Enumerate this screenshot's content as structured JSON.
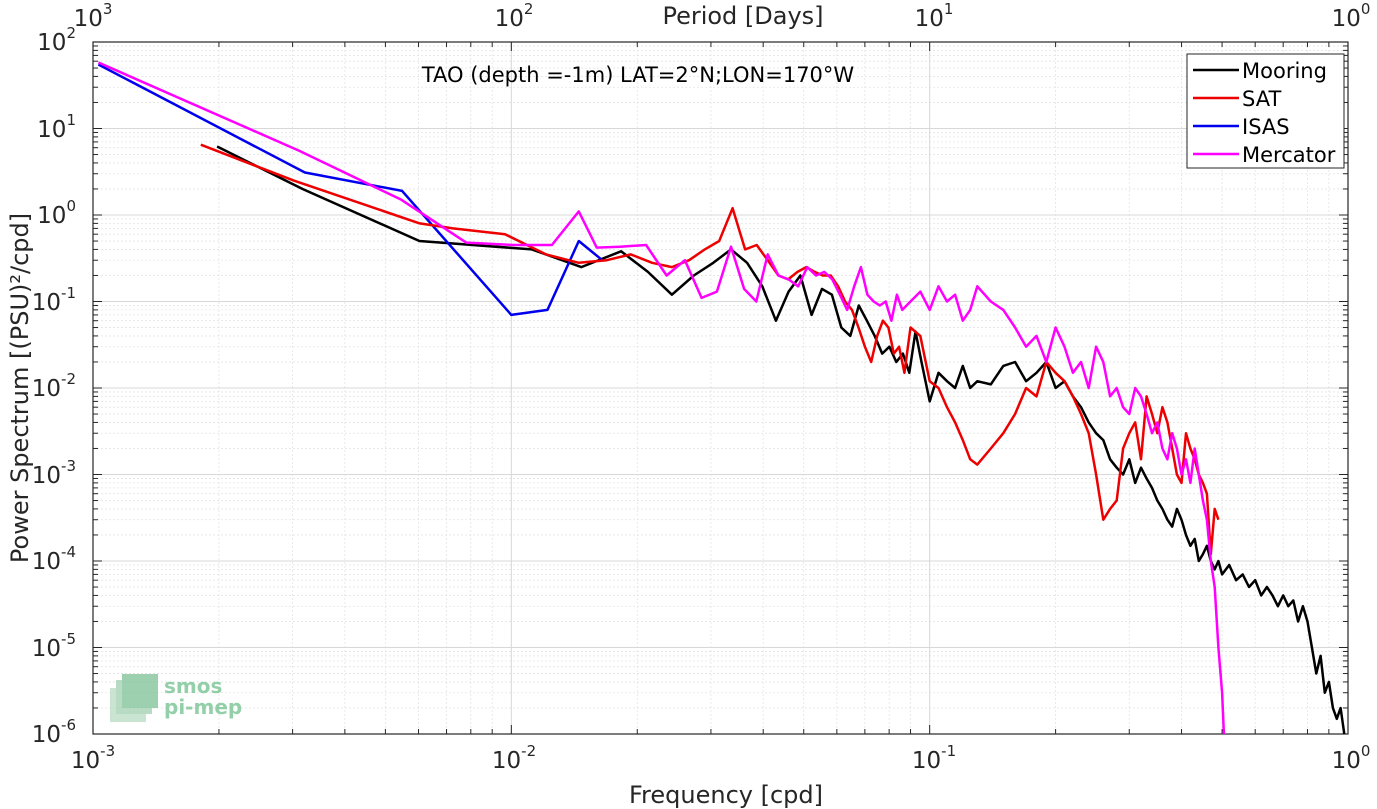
{
  "chart_data": {
    "type": "line",
    "title": "TAO (depth =-1m) LAT=2°N;LON=170°W",
    "xlabel": "Frequency [cpd]",
    "ylabel": "Power Spectrum [(PSU)²/cpd]",
    "top_axis_label": "Period [Days]",
    "x_scale": "log",
    "y_scale": "log",
    "xlim": [
      0.001,
      1
    ],
    "ylim": [
      1e-06,
      100
    ],
    "grid": true,
    "legend_position": "top-right",
    "x_tick_labels": [
      {
        "base": "10",
        "exp": "-3"
      },
      {
        "base": "10",
        "exp": "-2"
      },
      {
        "base": "10",
        "exp": "-1"
      },
      {
        "base": "10",
        "exp": "0"
      }
    ],
    "y_tick_labels": [
      {
        "base": "10",
        "exp": "-6"
      },
      {
        "base": "10",
        "exp": "-5"
      },
      {
        "base": "10",
        "exp": "-4"
      },
      {
        "base": "10",
        "exp": "-3"
      },
      {
        "base": "10",
        "exp": "-2"
      },
      {
        "base": "10",
        "exp": "-1"
      },
      {
        "base": "10",
        "exp": "0"
      },
      {
        "base": "10",
        "exp": "1"
      },
      {
        "base": "10",
        "exp": "2"
      }
    ],
    "top_tick_labels": [
      {
        "base": "10",
        "exp": "3"
      },
      {
        "base": "10",
        "exp": "2"
      },
      {
        "base": "10",
        "exp": "1"
      },
      {
        "base": "10",
        "exp": "0"
      }
    ],
    "series": [
      {
        "name": "Mooring",
        "color": "#000000",
        "x": [
          0.00198,
          0.00317,
          0.00603,
          0.0112,
          0.0147,
          0.0183,
          0.0212,
          0.0242,
          0.0273,
          0.0304,
          0.0335,
          0.0366,
          0.0398,
          0.0429,
          0.046,
          0.0491,
          0.0522,
          0.0553,
          0.0584,
          0.0615,
          0.0646,
          0.0677,
          0.0708,
          0.0739,
          0.077,
          0.0801,
          0.0832,
          0.0863,
          0.0894,
          0.0925,
          0.0956,
          0.1,
          0.105,
          0.11,
          0.115,
          0.12,
          0.125,
          0.13,
          0.14,
          0.15,
          0.16,
          0.17,
          0.18,
          0.19,
          0.2,
          0.21,
          0.22,
          0.23,
          0.24,
          0.25,
          0.26,
          0.27,
          0.28,
          0.29,
          0.3,
          0.31,
          0.32,
          0.33,
          0.34,
          0.35,
          0.36,
          0.37,
          0.38,
          0.39,
          0.4,
          0.41,
          0.42,
          0.43,
          0.44,
          0.45,
          0.46,
          0.47,
          0.48,
          0.49,
          0.5,
          0.52,
          0.54,
          0.56,
          0.58,
          0.6,
          0.62,
          0.64,
          0.66,
          0.68,
          0.7,
          0.72,
          0.74,
          0.76,
          0.78,
          0.8,
          0.82,
          0.84,
          0.86,
          0.88,
          0.9,
          0.92,
          0.94,
          0.96,
          0.98
        ],
        "y": [
          6.2,
          2.0,
          0.5,
          0.4,
          0.25,
          0.38,
          0.22,
          0.12,
          0.2,
          0.28,
          0.4,
          0.28,
          0.15,
          0.06,
          0.13,
          0.2,
          0.07,
          0.14,
          0.12,
          0.05,
          0.04,
          0.09,
          0.06,
          0.04,
          0.025,
          0.03,
          0.02,
          0.025,
          0.015,
          0.045,
          0.02,
          0.007,
          0.015,
          0.012,
          0.01,
          0.018,
          0.01,
          0.012,
          0.011,
          0.018,
          0.02,
          0.012,
          0.015,
          0.02,
          0.01,
          0.012,
          0.008,
          0.006,
          0.004,
          0.003,
          0.0025,
          0.0015,
          0.0012,
          0.001,
          0.0015,
          0.0008,
          0.0012,
          0.0009,
          0.0007,
          0.0005,
          0.0004,
          0.0003,
          0.00025,
          0.0004,
          0.0003,
          0.0002,
          0.00015,
          0.00018,
          0.0001,
          0.00012,
          0.00015,
          0.0001,
          8e-05,
          0.0001,
          7e-05,
          9e-05,
          6e-05,
          7e-05,
          5e-05,
          6e-05,
          4e-05,
          5e-05,
          4e-05,
          3e-05,
          4e-05,
          3e-05,
          3.5e-05,
          2e-05,
          3e-05,
          2e-05,
          1e-05,
          5e-06,
          8e-06,
          3e-06,
          4e-06,
          2e-06,
          1.5e-06,
          2e-06,
          1e-06
        ]
      },
      {
        "name": "SAT",
        "color": "#ee0000",
        "x": [
          0.00181,
          0.00302,
          0.00604,
          0.00725,
          0.00966,
          0.0121,
          0.0145,
          0.0169,
          0.0193,
          0.0217,
          0.0242,
          0.0266,
          0.029,
          0.0314,
          0.0338,
          0.0362,
          0.0386,
          0.041,
          0.0435,
          0.0459,
          0.0483,
          0.0507,
          0.0531,
          0.0555,
          0.058,
          0.0604,
          0.0628,
          0.0652,
          0.0676,
          0.07,
          0.0725,
          0.0749,
          0.0773,
          0.0797,
          0.0821,
          0.0845,
          0.087,
          0.09,
          0.095,
          0.1,
          0.105,
          0.11,
          0.115,
          0.12,
          0.125,
          0.13,
          0.14,
          0.15,
          0.16,
          0.17,
          0.18,
          0.19,
          0.2,
          0.21,
          0.22,
          0.23,
          0.24,
          0.25,
          0.26,
          0.27,
          0.28,
          0.29,
          0.3,
          0.31,
          0.32,
          0.33,
          0.34,
          0.35,
          0.36,
          0.37,
          0.38,
          0.39,
          0.4,
          0.41,
          0.42,
          0.43,
          0.44,
          0.45,
          0.46,
          0.47,
          0.48,
          0.49
        ],
        "y": [
          6.5,
          2.5,
          0.8,
          0.7,
          0.6,
          0.35,
          0.28,
          0.3,
          0.35,
          0.28,
          0.25,
          0.3,
          0.4,
          0.5,
          1.2,
          0.4,
          0.45,
          0.3,
          0.2,
          0.18,
          0.22,
          0.25,
          0.22,
          0.2,
          0.2,
          0.15,
          0.1,
          0.08,
          0.05,
          0.03,
          0.02,
          0.04,
          0.06,
          0.05,
          0.025,
          0.03,
          0.015,
          0.05,
          0.04,
          0.012,
          0.01,
          0.006,
          0.004,
          0.0025,
          0.0015,
          0.0013,
          0.002,
          0.003,
          0.005,
          0.01,
          0.008,
          0.02,
          0.015,
          0.012,
          0.008,
          0.005,
          0.003,
          0.001,
          0.0003,
          0.0004,
          0.0005,
          0.002,
          0.003,
          0.004,
          0.0015,
          0.008,
          0.005,
          0.003,
          0.006,
          0.004,
          0.002,
          0.001,
          0.0008,
          0.003,
          0.002,
          0.0015,
          0.001,
          0.0008,
          0.0006,
          0.00012,
          0.0004,
          0.0003
        ]
      },
      {
        "name": "ISAS",
        "color": "#0000ee",
        "x": [
          0.00103,
          0.00321,
          0.00548,
          0.01,
          0.0122,
          0.0145,
          0.0165
        ],
        "y": [
          55,
          3.1,
          1.9,
          0.07,
          0.08,
          0.5,
          0.3
        ]
      },
      {
        "name": "Mercator",
        "color": "#ff00ff",
        "x": [
          0.00103,
          0.00312,
          0.00546,
          0.0078,
          0.0101,
          0.0125,
          0.0145,
          0.016,
          0.0182,
          0.021,
          0.0235,
          0.026,
          0.0285,
          0.031,
          0.0335,
          0.036,
          0.0385,
          0.041,
          0.0435,
          0.046,
          0.0485,
          0.051,
          0.0535,
          0.056,
          0.0585,
          0.061,
          0.0635,
          0.066,
          0.0685,
          0.071,
          0.0735,
          0.076,
          0.0785,
          0.081,
          0.0835,
          0.086,
          0.09,
          0.095,
          0.1,
          0.105,
          0.11,
          0.115,
          0.12,
          0.125,
          0.13,
          0.14,
          0.15,
          0.16,
          0.17,
          0.18,
          0.19,
          0.2,
          0.21,
          0.22,
          0.23,
          0.24,
          0.25,
          0.26,
          0.27,
          0.28,
          0.29,
          0.3,
          0.31,
          0.32,
          0.33,
          0.34,
          0.35,
          0.36,
          0.37,
          0.38,
          0.39,
          0.4,
          0.41,
          0.42,
          0.43,
          0.44,
          0.45,
          0.46,
          0.47,
          0.48,
          0.49,
          0.5,
          0.505
        ],
        "y": [
          58,
          5.5,
          1.5,
          0.48,
          0.45,
          0.45,
          1.1,
          0.42,
          0.43,
          0.45,
          0.2,
          0.3,
          0.11,
          0.13,
          0.43,
          0.14,
          0.1,
          0.35,
          0.2,
          0.18,
          0.15,
          0.25,
          0.2,
          0.22,
          0.18,
          0.12,
          0.08,
          0.15,
          0.25,
          0.12,
          0.1,
          0.09,
          0.1,
          0.06,
          0.12,
          0.08,
          0.1,
          0.13,
          0.08,
          0.15,
          0.1,
          0.12,
          0.06,
          0.08,
          0.15,
          0.1,
          0.08,
          0.05,
          0.03,
          0.04,
          0.02,
          0.05,
          0.03,
          0.015,
          0.02,
          0.01,
          0.03,
          0.02,
          0.008,
          0.01,
          0.006,
          0.005,
          0.01,
          0.008,
          0.005,
          0.003,
          0.004,
          0.002,
          0.0015,
          0.003,
          0.002,
          0.001,
          0.0015,
          0.0008,
          0.002,
          0.001,
          0.0005,
          0.0003,
          0.0001,
          5e-05,
          1e-05,
          3e-06,
          1e-06
        ]
      }
    ]
  }
}
